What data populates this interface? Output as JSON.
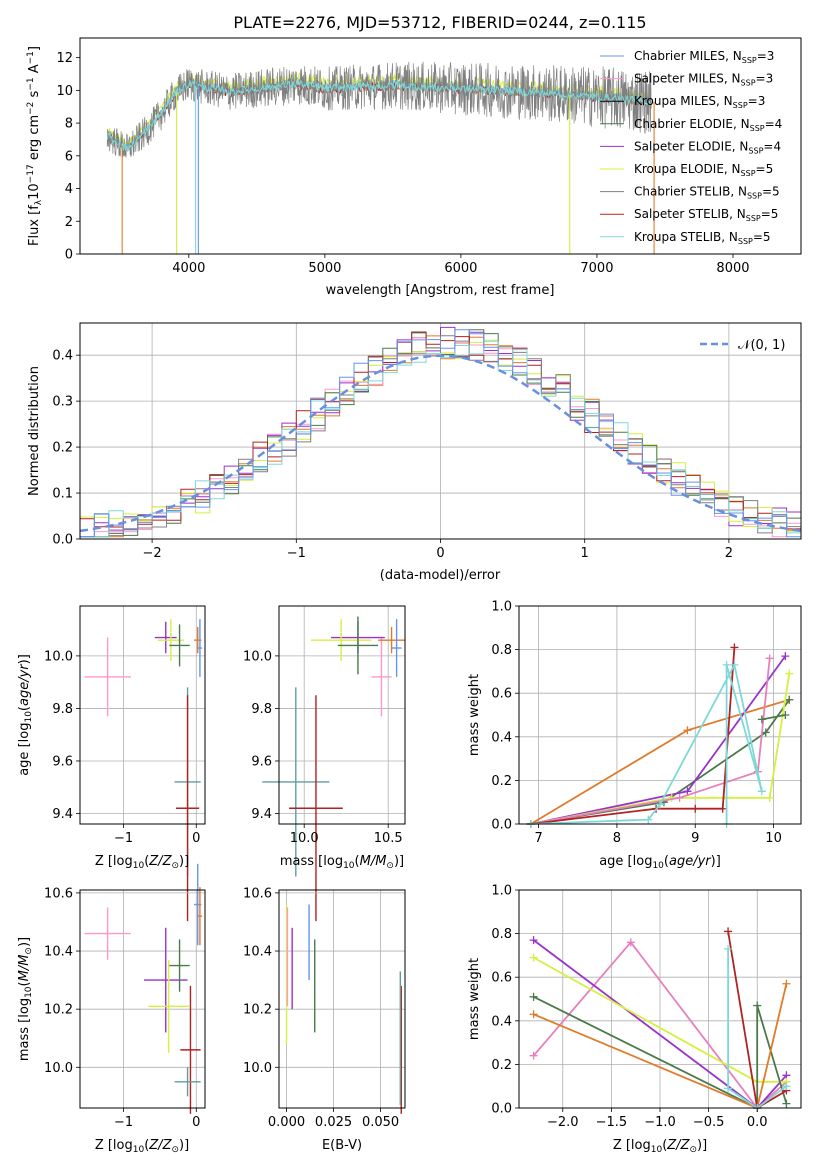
{
  "figure_title": "PLATE=2276, MJD=53712, FIBERID=0244, z=0.115",
  "colors": {
    "chabrier_miles": "#6495ed",
    "salpeter_miles": "#ff99cc",
    "kroupa_miles": "#000000",
    "chabrier_elodie": "#4a7a4a",
    "salpeter_elodie": "#9932cc",
    "kroupa_elodie": "#d4f040",
    "chabrier_stelib": "#808080",
    "salpeter_stelib": "#b22222",
    "kroupa_stelib": "#7fd8d8",
    "orange": "#e07b2a",
    "pink": "#e77fbf",
    "normal_curve": "#6a8ee0",
    "grid": "#b0b0b0"
  },
  "chart_data": [
    {
      "id": "spectrum",
      "type": "line",
      "title": "PLATE=2276, MJD=53712, FIBERID=0244, z=0.115",
      "xlabel": "wavelength [Angstrom, rest frame]",
      "ylabel": "Flux [f_λ10^-17 erg cm^-2 s^-1 A^-1]",
      "xlim": [
        3200,
        8500
      ],
      "ylim": [
        0,
        13.2
      ],
      "xticks": [
        4000,
        5000,
        6000,
        7000,
        8000
      ],
      "yticks": [
        0,
        2,
        4,
        6,
        8,
        10,
        12
      ],
      "grid": false,
      "legend_position": "right",
      "legend": [
        {
          "label": "Chabrier MILES, N",
          "sub": "SSP",
          "suffix": "=3",
          "color": "#6495ed"
        },
        {
          "label": "Salpeter MILES, N",
          "sub": "SSP",
          "suffix": "=3",
          "color": "#ff99cc"
        },
        {
          "label": "Kroupa MILES, N",
          "sub": "SSP",
          "suffix": "=3",
          "color": "#000000"
        },
        {
          "label": "Chabrier ELODIE, N",
          "sub": "SSP",
          "suffix": "=4",
          "color": "#4a7a4a"
        },
        {
          "label": "Salpeter ELODIE, N",
          "sub": "SSP",
          "suffix": "=4",
          "color": "#9932cc"
        },
        {
          "label": "Kroupa ELODIE, N",
          "sub": "SSP",
          "suffix": "=5",
          "color": "#d4f040"
        },
        {
          "label": "Chabrier STELIB, N",
          "sub": "SSP",
          "suffix": "=5",
          "color": "#808080"
        },
        {
          "label": "Salpeter STELIB, N",
          "sub": "SSP",
          "suffix": "=5",
          "color": "#b22222"
        },
        {
          "label": "Kroupa STELIB, N",
          "sub": "SSP",
          "suffix": "=5",
          "color": "#7fd8d8"
        }
      ],
      "continuum": {
        "x": [
          3400,
          3550,
          3700,
          3800,
          3900,
          4000,
          4100,
          4300,
          4500,
          4800,
          5000,
          5500,
          6000,
          6500,
          7000,
          7400
        ],
        "y": [
          7.2,
          6.4,
          7.6,
          8.6,
          9.8,
          10.4,
          10.2,
          9.9,
          10.1,
          10.4,
          10.1,
          10.3,
          10.1,
          9.9,
          9.6,
          9.3
        ]
      },
      "noise_x": [
        3400,
        7400
      ],
      "noise_y": [
        0.9,
        2.0
      ],
      "dips": [
        {
          "x": 3510,
          "y": 0.0
        },
        {
          "x": 3910,
          "y": 0.0
        },
        {
          "x": 4050,
          "y": 0.0
        },
        {
          "x": 4070,
          "y": 0.0
        },
        {
          "x": 6800,
          "y": 0.0
        },
        {
          "x": 7420,
          "y": 0.0
        }
      ]
    },
    {
      "id": "histogram",
      "type": "line",
      "xlabel": "(data-model)/error",
      "ylabel": "Normed distribution",
      "xlim": [
        -2.5,
        2.5
      ],
      "ylim": [
        0,
        0.47
      ],
      "xticks": [
        -2,
        -1,
        0,
        1,
        2
      ],
      "yticks": [
        0.0,
        0.1,
        0.2,
        0.3,
        0.4
      ],
      "grid": true,
      "legend_position": "top-right",
      "legend": [
        {
          "label": "𝒩(0, 1)",
          "color": "#6a8ee0"
        }
      ],
      "bin_width": 0.1,
      "jitter": 0.035
    },
    {
      "id": "age_vs_Z",
      "type": "scatter",
      "xlabel": "Z [log10(Z/Z⊙)]",
      "ylabel": "age  [log10(age/yr)]",
      "xlim": [
        -1.6,
        0.12
      ],
      "ylim": [
        9.36,
        10.19
      ],
      "xticks": [
        -1,
        0
      ],
      "yticks": [
        9.4,
        9.6,
        9.8,
        10.0
      ],
      "grid": true,
      "points": [
        {
          "x": -1.22,
          "y": 9.92,
          "xerr": 0.32,
          "yerr": 0.15,
          "color": "#ff99cc"
        },
        {
          "x": -0.42,
          "y": 10.07,
          "xerr": 0.15,
          "yerr": 0.06,
          "color": "#9932cc"
        },
        {
          "x": -0.35,
          "y": 10.06,
          "xerr": 0.18,
          "yerr": 0.08,
          "color": "#d4f040"
        },
        {
          "x": -0.23,
          "y": 10.04,
          "xerr": 0.14,
          "yerr": 0.08,
          "color": "#4a7a4a"
        },
        {
          "x": 0.02,
          "y": 10.06,
          "xerr": 0.05,
          "yerr": 0.05,
          "color": "#e07b2a"
        },
        {
          "x": 0.05,
          "y": 10.03,
          "xerr": 0.03,
          "yerr": 0.11,
          "color": "#6495ed"
        },
        {
          "x": -0.12,
          "y": 9.52,
          "xerr": 0.18,
          "yerr": 0.36,
          "color": "#5f9ea0"
        },
        {
          "x": -0.12,
          "y": 9.42,
          "xerr": 0.16,
          "yerr": 0.43,
          "color": "#b22222"
        }
      ]
    },
    {
      "id": "age_vs_mass",
      "type": "scatter",
      "xlabel": "mass [log10(M/M⊙)]",
      "ylabel": "",
      "xlim": [
        9.85,
        10.6
      ],
      "ylim": [
        9.36,
        10.19
      ],
      "xticks": [
        10.0,
        10.5
      ],
      "yticks": [
        9.4,
        9.6,
        9.8,
        10.0
      ],
      "grid": true,
      "points": [
        {
          "x": 10.46,
          "y": 9.92,
          "xerr": 0.06,
          "yerr": 0.15,
          "color": "#ff99cc"
        },
        {
          "x": 10.32,
          "y": 10.07,
          "xerr": 0.16,
          "yerr": 0.06,
          "color": "#9932cc"
        },
        {
          "x": 10.22,
          "y": 10.06,
          "xerr": 0.18,
          "yerr": 0.08,
          "color": "#d4f040"
        },
        {
          "x": 10.32,
          "y": 10.04,
          "xerr": 0.12,
          "yerr": 0.11,
          "color": "#4a7a4a"
        },
        {
          "x": 10.52,
          "y": 10.06,
          "xerr": 0.08,
          "yerr": 0.05,
          "color": "#e07b2a"
        },
        {
          "x": 10.55,
          "y": 10.03,
          "xerr": 0.03,
          "yerr": 0.11,
          "color": "#6495ed"
        },
        {
          "x": 9.95,
          "y": 9.52,
          "xerr": 0.2,
          "yerr": 0.36,
          "color": "#5f9ea0"
        },
        {
          "x": 10.07,
          "y": 9.42,
          "xerr": 0.16,
          "yerr": 0.43,
          "color": "#b22222"
        }
      ]
    },
    {
      "id": "weight_vs_age",
      "type": "line",
      "xlabel": "age  [log10(age/yr)]",
      "ylabel": "mass weight",
      "xlim": [
        6.75,
        10.35
      ],
      "ylim": [
        0,
        1.0
      ],
      "xticks": [
        7,
        8,
        9,
        10
      ],
      "yticks": [
        0.0,
        0.2,
        0.4,
        0.6,
        0.8,
        1.0
      ],
      "grid": true,
      "series": [
        {
          "x": [
            6.9,
            8.9,
            10.2
          ],
          "y": [
            0.0,
            0.43,
            0.57
          ],
          "color": "#e07b2a"
        },
        {
          "x": [
            6.9,
            8.6,
            9.9,
            10.2
          ],
          "y": [
            0.0,
            0.1,
            0.42,
            0.57
          ],
          "color": "#4a7a4a"
        },
        {
          "x": [
            6.9,
            8.9,
            10.15
          ],
          "y": [
            0.0,
            0.15,
            0.77
          ],
          "color": "#9932cc"
        },
        {
          "x": [
            6.9,
            8.7,
            9.95,
            10.2
          ],
          "y": [
            0.0,
            0.12,
            0.12,
            0.69
          ],
          "color": "#d4f040"
        },
        {
          "x": [
            6.9,
            8.8,
            9.8,
            9.95
          ],
          "y": [
            0.0,
            0.12,
            0.24,
            0.76
          ],
          "color": "#e77fbf"
        },
        {
          "x": [
            6.9,
            8.5,
            9.0,
            9.35,
            9.5
          ],
          "y": [
            0.0,
            0.07,
            0.07,
            0.07,
            0.81
          ],
          "color": "#b22222"
        },
        {
          "x": [
            6.9,
            8.4,
            8.55,
            9.5,
            9.85,
            9.4,
            9.4
          ],
          "y": [
            0.0,
            0.02,
            0.09,
            0.73,
            0.15,
            0.73,
            0.0
          ],
          "color": "#7fd8d8"
        },
        {
          "x": [
            9.85,
            10.15
          ],
          "y": [
            0.48,
            0.5
          ],
          "color": "#4a7a4a"
        }
      ]
    },
    {
      "id": "mass_vs_Z",
      "type": "scatter",
      "xlabel": "Z [log10(Z/Z⊙)]",
      "ylabel": "mass [log10(M/M⊙)]",
      "xlim": [
        -1.6,
        0.12
      ],
      "ylim": [
        9.86,
        10.61
      ],
      "xticks": [
        -1,
        0
      ],
      "yticks": [
        10.0,
        10.2,
        10.4,
        10.6
      ],
      "grid": true,
      "points": [
        {
          "x": -1.22,
          "y": 10.46,
          "xerr": 0.32,
          "yerr": 0.09,
          "color": "#ff99cc"
        },
        {
          "x": -0.42,
          "y": 10.3,
          "xerr": 0.3,
          "yerr": 0.18,
          "color": "#9932cc"
        },
        {
          "x": -0.38,
          "y": 10.21,
          "xerr": 0.28,
          "yerr": 0.16,
          "color": "#d4f040"
        },
        {
          "x": -0.23,
          "y": 10.35,
          "xerr": 0.14,
          "yerr": 0.09,
          "color": "#4a7a4a"
        },
        {
          "x": -0.08,
          "y": 10.06,
          "xerr": 0.14,
          "yerr": 0.22,
          "color": "#b22222"
        },
        {
          "x": -0.12,
          "y": 9.95,
          "xerr": 0.18,
          "yerr": 0.05,
          "color": "#5f9ea0"
        },
        {
          "x": 0.02,
          "y": 10.56,
          "xerr": 0.05,
          "yerr": 0.14,
          "color": "#6495ed"
        },
        {
          "x": 0.05,
          "y": 10.52,
          "xerr": 0.03,
          "yerr": 0.1,
          "color": "#e07b2a"
        }
      ]
    },
    {
      "id": "mass_vs_ebv",
      "type": "scatter",
      "xlabel": "E(B-V)",
      "ylabel": "",
      "xlim": [
        -0.004,
        0.063
      ],
      "ylim": [
        9.86,
        10.61
      ],
      "xticks": [
        0.0,
        0.025,
        0.05
      ],
      "yticks": [
        10.0,
        10.2,
        10.4,
        10.6
      ],
      "grid": true,
      "points": [
        {
          "x": 0.0,
          "y": 10.32,
          "xerr": 0,
          "yerr": 0.24,
          "color": "#d4f040"
        },
        {
          "x": 0.0005,
          "y": 10.38,
          "xerr": 0,
          "yerr": 0.17,
          "color": "#ff99cc"
        },
        {
          "x": 0.003,
          "y": 10.34,
          "xerr": 0,
          "yerr": 0.14,
          "color": "#9932cc"
        },
        {
          "x": 0.012,
          "y": 10.43,
          "xerr": 0,
          "yerr": 0.13,
          "color": "#6495ed"
        },
        {
          "x": 0.015,
          "y": 10.28,
          "xerr": 0,
          "yerr": 0.16,
          "color": "#4a7a4a"
        },
        {
          "x": 0.061,
          "y": 10.06,
          "xerr": 0,
          "yerr": 0.22,
          "color": "#b22222"
        },
        {
          "x": 0.0605,
          "y": 10.1,
          "xerr": 0,
          "yerr": 0.23,
          "color": "#5f9ea0"
        }
      ]
    },
    {
      "id": "weight_vs_Z",
      "type": "line",
      "xlabel": "Z [log10(Z/Z⊙)]",
      "ylabel": "mass weight",
      "xlim": [
        -2.45,
        0.45
      ],
      "ylim": [
        0,
        1.0
      ],
      "xticks": [
        -2.0,
        -1.5,
        -1.0,
        -0.5,
        0.0
      ],
      "yticks": [
        0.0,
        0.2,
        0.4,
        0.6,
        0.8,
        1.0
      ],
      "grid": true,
      "series": [
        {
          "x": [
            -2.3,
            -1.3,
            0.0,
            0.3
          ],
          "y": [
            0.24,
            0.76,
            0.0,
            0.12
          ],
          "color": "#e77fbf"
        },
        {
          "x": [
            -2.3,
            0.0,
            0.3
          ],
          "y": [
            0.77,
            0.0,
            0.15
          ],
          "color": "#9932cc"
        },
        {
          "x": [
            -2.3,
            0.0,
            0.3
          ],
          "y": [
            0.69,
            0.12,
            0.12
          ],
          "color": "#d4f040"
        },
        {
          "x": [
            -2.3,
            0.0,
            0.0,
            0.3
          ],
          "y": [
            0.51,
            0.0,
            0.47,
            0.02
          ],
          "color": "#4a7a4a"
        },
        {
          "x": [
            -2.3,
            0.0,
            0.3
          ],
          "y": [
            0.43,
            0.0,
            0.57
          ],
          "color": "#e07b2a"
        },
        {
          "x": [
            -0.3,
            0.0,
            0.3
          ],
          "y": [
            0.81,
            0.0,
            0.08
          ],
          "color": "#b22222"
        },
        {
          "x": [
            -0.3,
            -0.3,
            0.0,
            0.3
          ],
          "y": [
            0.73,
            0.09,
            0.0,
            0.1
          ],
          "color": "#7fd8d8"
        }
      ]
    }
  ]
}
